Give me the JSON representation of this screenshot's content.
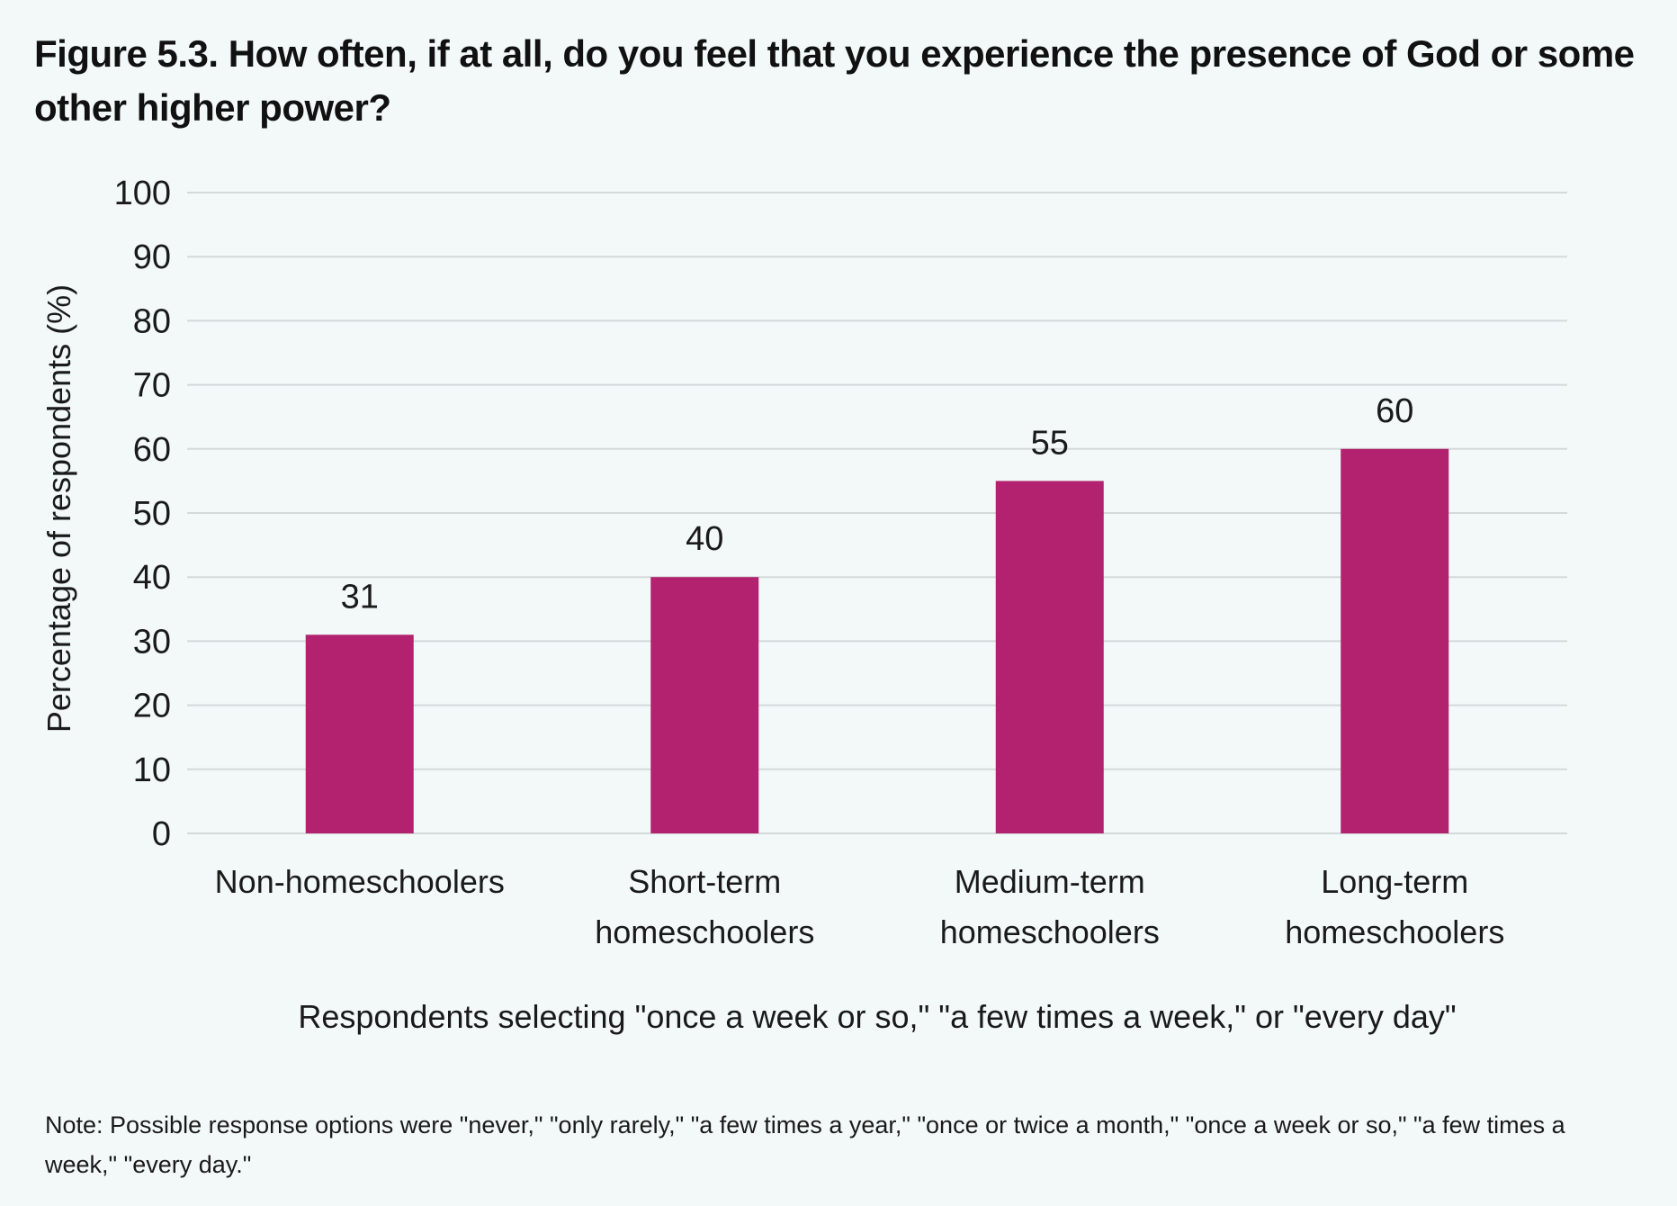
{
  "page": {
    "title": "Figure 5.3. How often, if at all, do you feel that you experience the presence of God or some other higher power?",
    "note": "Note: Possible response options were \"never,\" \"only rarely,\" \"a few times a year,\" \"once or twice a month,\" \"once a week or so,\" \"a few times a week,\" \"every day.\""
  },
  "colors": {
    "background": "#f2f9f8",
    "bar": "#b2226f",
    "gridline": "#d4d9da",
    "text": "#1a1a1a"
  },
  "chart_data": {
    "type": "bar",
    "title": "Figure 5.3. How often, if at all, do you feel that you experience the presence of God or some other higher power?",
    "categories": [
      [
        "Non-homeschoolers"
      ],
      [
        "Short-term",
        "homeschoolers"
      ],
      [
        "Medium-term",
        "homeschoolers"
      ],
      [
        "Long-term",
        "homeschoolers"
      ]
    ],
    "values": [
      31,
      40,
      55,
      60
    ],
    "data_labels": [
      "31",
      "40",
      "55",
      "60"
    ],
    "xlabel": "Respondents selecting \"once a week or so,\" \"a few times a week,\" or \"every day\"",
    "ylabel": "Percentage of respondents (%)",
    "ylim": [
      0,
      100
    ],
    "yticks": [
      0,
      10,
      20,
      30,
      40,
      50,
      60,
      70,
      80,
      90,
      100
    ],
    "grid": true,
    "legend": "none"
  }
}
